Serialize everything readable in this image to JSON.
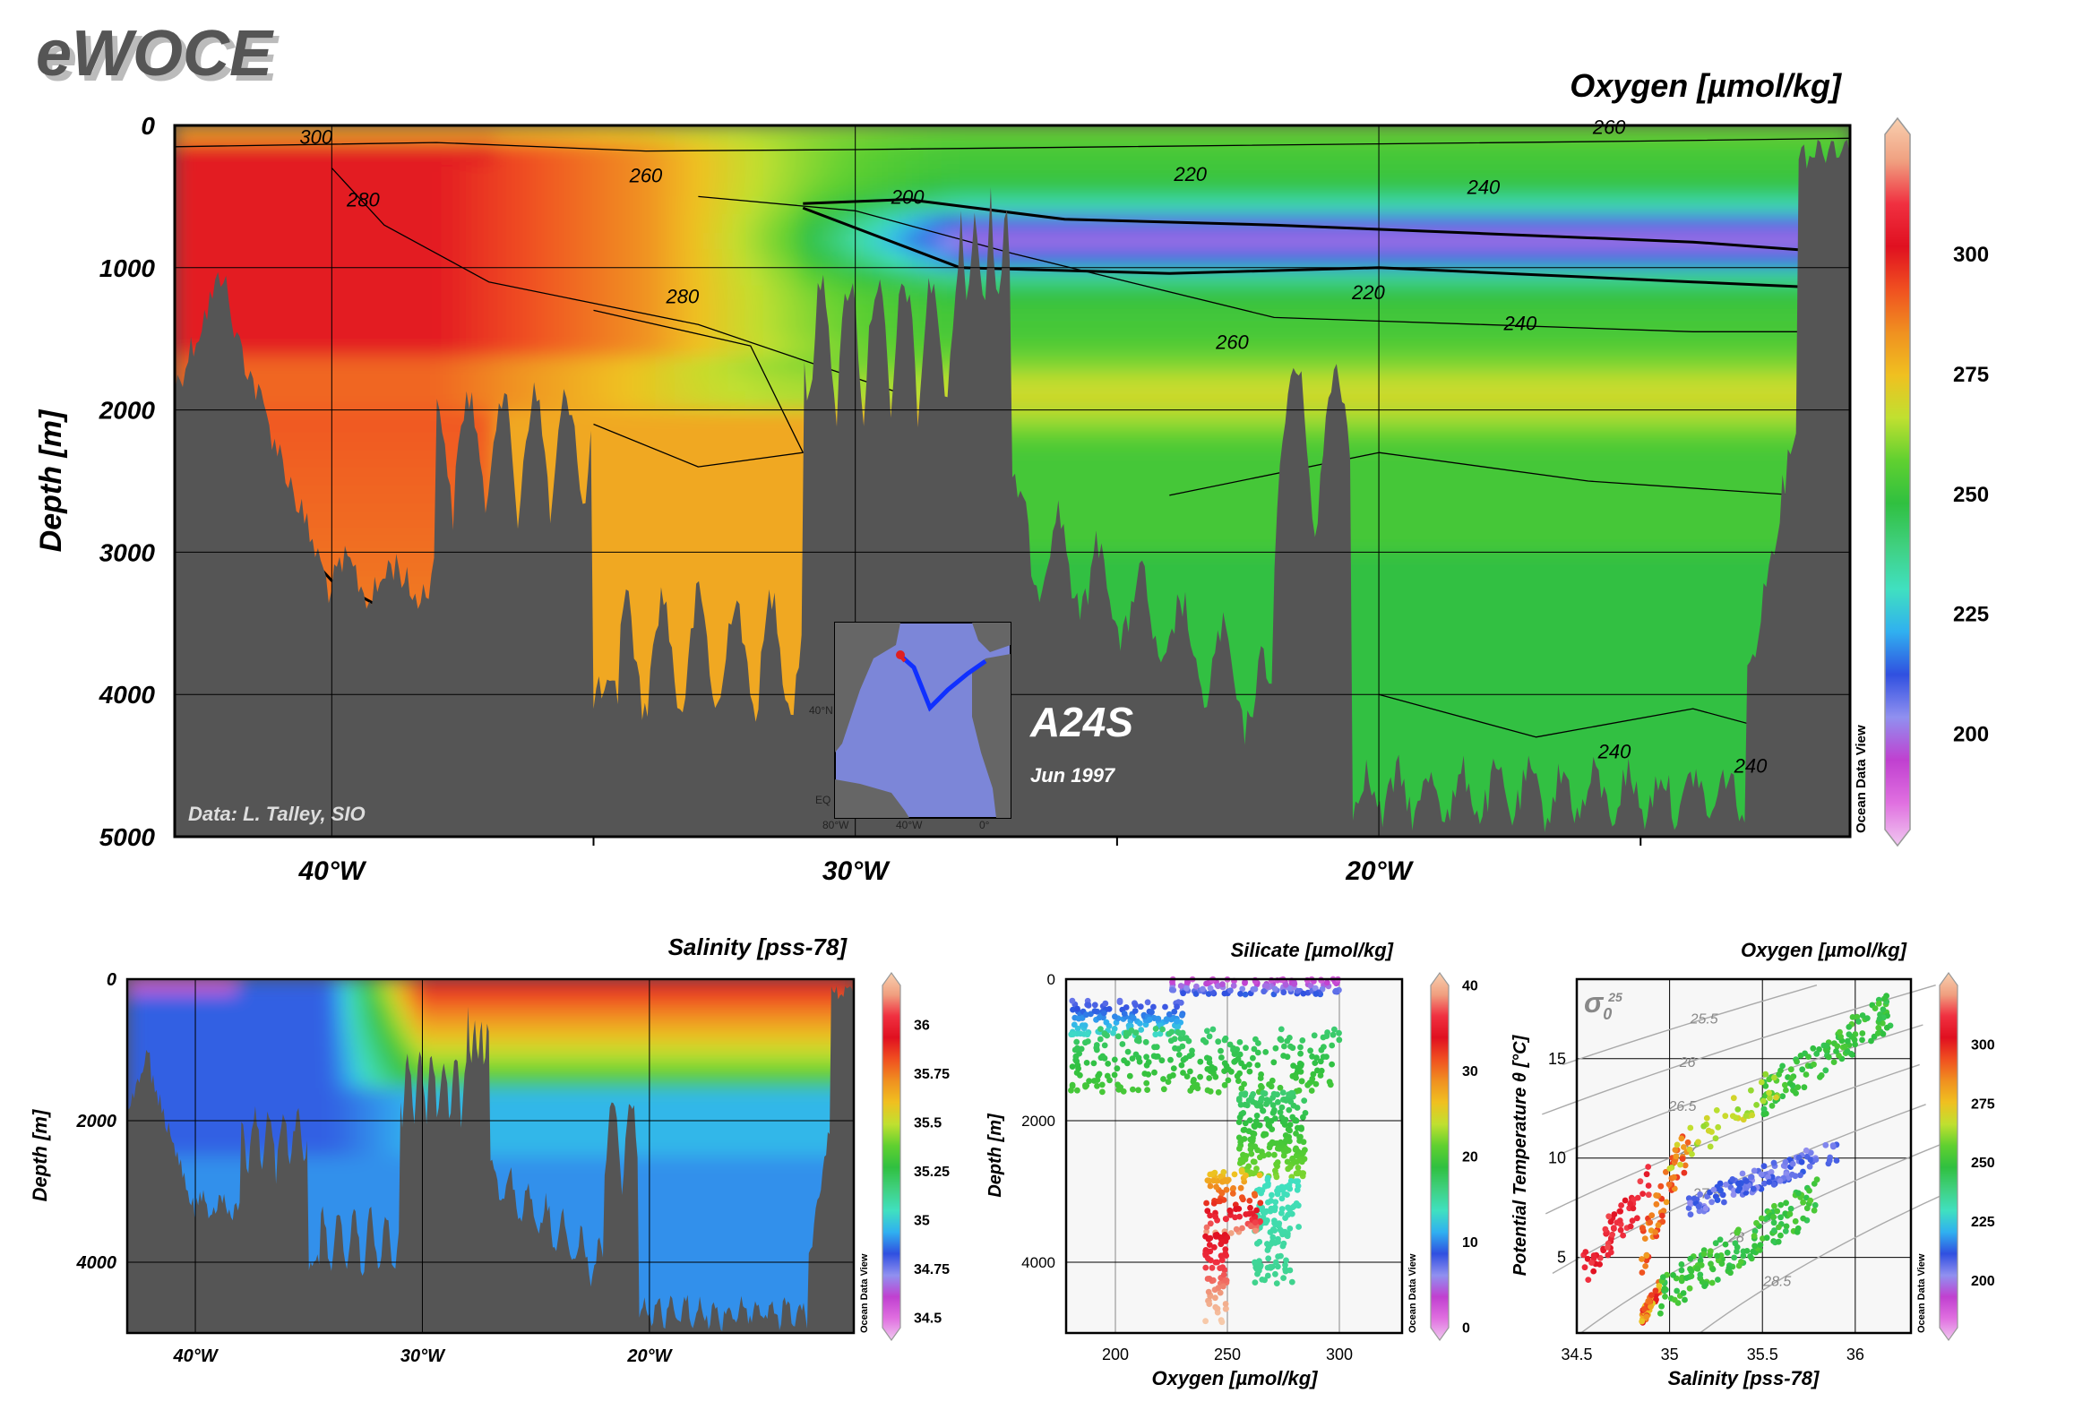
{
  "logo": "eWOCE",
  "credit": "Data: L. Talley, SIO",
  "watermark": "Ocean Data View",
  "section": {
    "name": "A24S",
    "date": "Jun 1997"
  },
  "colors": {
    "land": "#555555",
    "panel_bg": "#f7f7f7"
  },
  "colormap": [
    "#f0c8f0",
    "#e070e0",
    "#c040d0",
    "#9090f0",
    "#3050e0",
    "#30b0f0",
    "#40e0c0",
    "#40d080",
    "#30c040",
    "#60d030",
    "#c0e030",
    "#f0c020",
    "#f09020",
    "#f05020",
    "#e01020",
    "#f03040",
    "#f0a080",
    "#f8d0b0"
  ],
  "inset_map": {
    "lat_labels": [
      "40°N",
      "EQ"
    ],
    "lon_labels": [
      "80°W",
      "40°W",
      "0°"
    ]
  },
  "chart_data": [
    {
      "id": "main-oxygen-section",
      "type": "heatmap",
      "title": "Oxygen [µmol/kg]",
      "xlabel": "",
      "ylabel": "Depth [m]",
      "xlim": [
        -43,
        -11
      ],
      "ylim": [
        5000,
        0
      ],
      "xticks": [
        {
          "v": -40,
          "label": "40°W"
        },
        {
          "v": -30,
          "label": "30°W"
        },
        {
          "v": -20,
          "label": "20°W"
        }
      ],
      "yticks": [
        0,
        1000,
        2000,
        3000,
        4000,
        5000
      ],
      "colorbar": {
        "min": 180,
        "max": 325,
        "ticks": [
          200,
          225,
          250,
          275,
          300
        ]
      },
      "contour_labels": [
        {
          "lon": -40.3,
          "depth": 80,
          "text": "300"
        },
        {
          "lon": -34.0,
          "depth": 350,
          "text": "260"
        },
        {
          "lon": -39.4,
          "depth": 520,
          "text": "280"
        },
        {
          "lon": -29.0,
          "depth": 500,
          "text": "200"
        },
        {
          "lon": -23.6,
          "depth": 340,
          "text": "220"
        },
        {
          "lon": -18.0,
          "depth": 430,
          "text": "240"
        },
        {
          "lon": -33.3,
          "depth": 1200,
          "text": "280"
        },
        {
          "lon": -20.2,
          "depth": 1170,
          "text": "220"
        },
        {
          "lon": -17.3,
          "depth": 1390,
          "text": "240"
        },
        {
          "lon": -22.8,
          "depth": 1520,
          "text": "260"
        },
        {
          "lon": -15.5,
          "depth": 4400,
          "text": "240"
        },
        {
          "lon": -12.9,
          "depth": 4500,
          "text": "240"
        },
        {
          "lon": -15.6,
          "depth": 10,
          "text": "260"
        }
      ]
    },
    {
      "id": "salinity-section",
      "type": "heatmap",
      "title": "Salinity [pss-78]",
      "xlabel": "",
      "ylabel": "Depth [m]",
      "xlim": [
        -43,
        -11
      ],
      "ylim": [
        5000,
        0
      ],
      "xticks": [
        {
          "v": -40,
          "label": "40°W"
        },
        {
          "v": -30,
          "label": "30°W"
        },
        {
          "v": -20,
          "label": "20°W"
        }
      ],
      "yticks": [
        0,
        2000,
        4000
      ],
      "colorbar": {
        "min": 34.45,
        "max": 36.2,
        "ticks": [
          34.5,
          34.75,
          35,
          35.25,
          35.5,
          35.75,
          36
        ]
      }
    },
    {
      "id": "oxygen-depth-scatter",
      "type": "scatter",
      "title": "Silicate [µmol/kg]",
      "xlabel": "Oxygen [µmol/kg]",
      "ylabel": "Depth [m]",
      "xlim": [
        178,
        328
      ],
      "ylim": [
        5000,
        0
      ],
      "xticks": [
        200,
        250,
        300
      ],
      "yticks": [
        0,
        2000,
        4000
      ],
      "colorbar": {
        "min": 0,
        "max": 40,
        "ticks": [
          0,
          10,
          20,
          30,
          40
        ]
      },
      "clusters": [
        {
          "x0": 225,
          "x1": 300,
          "y0": 0,
          "y1": 220,
          "c0": 3,
          "c1": 10,
          "n": 120
        },
        {
          "x0": 180,
          "x1": 230,
          "y0": 300,
          "y1": 800,
          "c0": 8,
          "c1": 14,
          "n": 120
        },
        {
          "x0": 180,
          "x1": 300,
          "y0": 700,
          "y1": 1600,
          "c0": 17,
          "c1": 20,
          "n": 260
        },
        {
          "x0": 255,
          "x1": 285,
          "y0": 1600,
          "y1": 2800,
          "c0": 17,
          "c1": 22,
          "n": 200
        },
        {
          "x0": 262,
          "x1": 282,
          "y0": 2800,
          "y1": 4300,
          "c0": 14,
          "c1": 16,
          "n": 130
        },
        {
          "x0": 240,
          "x1": 265,
          "y0": 2700,
          "y1": 3600,
          "c0": 25,
          "c1": 38,
          "n": 90
        },
        {
          "x0": 240,
          "x1": 250,
          "y0": 3600,
          "y1": 4900,
          "c0": 33,
          "c1": 40,
          "n": 70
        }
      ]
    },
    {
      "id": "ts-diagram",
      "type": "scatter",
      "title": "Oxygen [µmol/kg]",
      "xlabel": "Salinity [pss-78]",
      "ylabel": "Potential Temperature θ [°C]",
      "xlim": [
        34.5,
        36.3
      ],
      "ylim": [
        1.2,
        19.0
      ],
      "xticks": [
        34.5,
        35,
        35.5,
        36
      ],
      "yticks": [
        5,
        10,
        15
      ],
      "colorbar": {
        "min": 180,
        "max": 325,
        "ticks": [
          200,
          225,
          250,
          275,
          300
        ]
      },
      "sigma_label": "σ",
      "sigma_sub": "0",
      "sigma_sup": "25",
      "isopycnals": [
        "25.5",
        "26",
        "26.5",
        "27",
        "27.5",
        "28",
        "28.5"
      ],
      "clusters": [
        {
          "s0": 34.52,
          "s1": 34.9,
          "t0": 3,
          "t1": 10,
          "o0": 300,
          "o1": 310,
          "n": 60
        },
        {
          "s0": 34.85,
          "s1": 35.1,
          "t0": 4,
          "t1": 12,
          "o0": 280,
          "o1": 295,
          "n": 60
        },
        {
          "s0": 34.85,
          "s1": 34.95,
          "t0": 1.5,
          "t1": 4,
          "o0": 270,
          "o1": 300,
          "n": 60
        },
        {
          "s0": 34.95,
          "s1": 35.8,
          "t0": 2,
          "t1": 9,
          "o0": 245,
          "o1": 255,
          "n": 150
        },
        {
          "s0": 35.1,
          "s1": 35.9,
          "t0": 7,
          "t1": 11,
          "o0": 205,
          "o1": 215,
          "n": 130
        },
        {
          "s0": 35.5,
          "s1": 36.2,
          "t0": 12,
          "t1": 18.5,
          "o0": 245,
          "o1": 255,
          "n": 120
        },
        {
          "s0": 35.0,
          "s1": 35.6,
          "t0": 9,
          "t1": 15,
          "o0": 260,
          "o1": 270,
          "n": 40
        }
      ]
    }
  ]
}
